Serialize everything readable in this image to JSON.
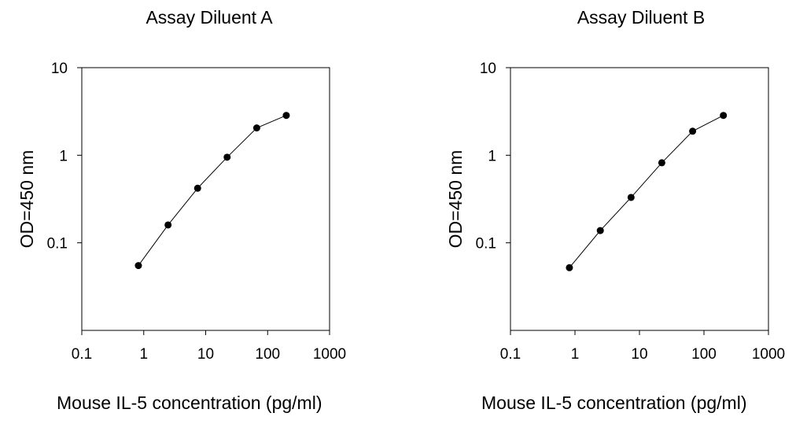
{
  "chart_data": [
    {
      "type": "scatter",
      "title": "Assay Diluent A",
      "xlabel": "Mouse IL-5 concentration (pg/ml)",
      "ylabel": "OD=450 nm",
      "xscale": "log",
      "yscale": "log",
      "xlim": [
        0.1,
        1000
      ],
      "ylim": [
        0.01,
        10
      ],
      "xticks": [
        "0.1",
        "1",
        "10",
        "100",
        "1000"
      ],
      "yticks": [
        "0.1",
        "1",
        "10"
      ],
      "grid": false,
      "series": [
        {
          "x": [
            0.82,
            2.47,
            7.41,
            22.2,
            66.7,
            200
          ],
          "y": [
            0.055,
            0.16,
            0.42,
            0.95,
            2.05,
            2.85
          ],
          "marker": "circle",
          "line": true,
          "color": "#000000"
        }
      ]
    },
    {
      "type": "scatter",
      "title": "Assay Diluent B",
      "xlabel": "Mouse IL-5 concentration (pg/ml)",
      "ylabel": "OD=450 nm",
      "xscale": "log",
      "yscale": "log",
      "xlim": [
        0.1,
        1000
      ],
      "ylim": [
        0.01,
        10
      ],
      "xticks": [
        "0.1",
        "1",
        "10",
        "100",
        "1000"
      ],
      "yticks": [
        "0.1",
        "1",
        "10"
      ],
      "grid": false,
      "series": [
        {
          "x": [
            0.82,
            2.47,
            7.41,
            22.2,
            66.7,
            200
          ],
          "y": [
            0.052,
            0.138,
            0.33,
            0.82,
            1.88,
            2.85
          ],
          "marker": "circle",
          "line": true,
          "color": "#000000"
        }
      ]
    }
  ]
}
